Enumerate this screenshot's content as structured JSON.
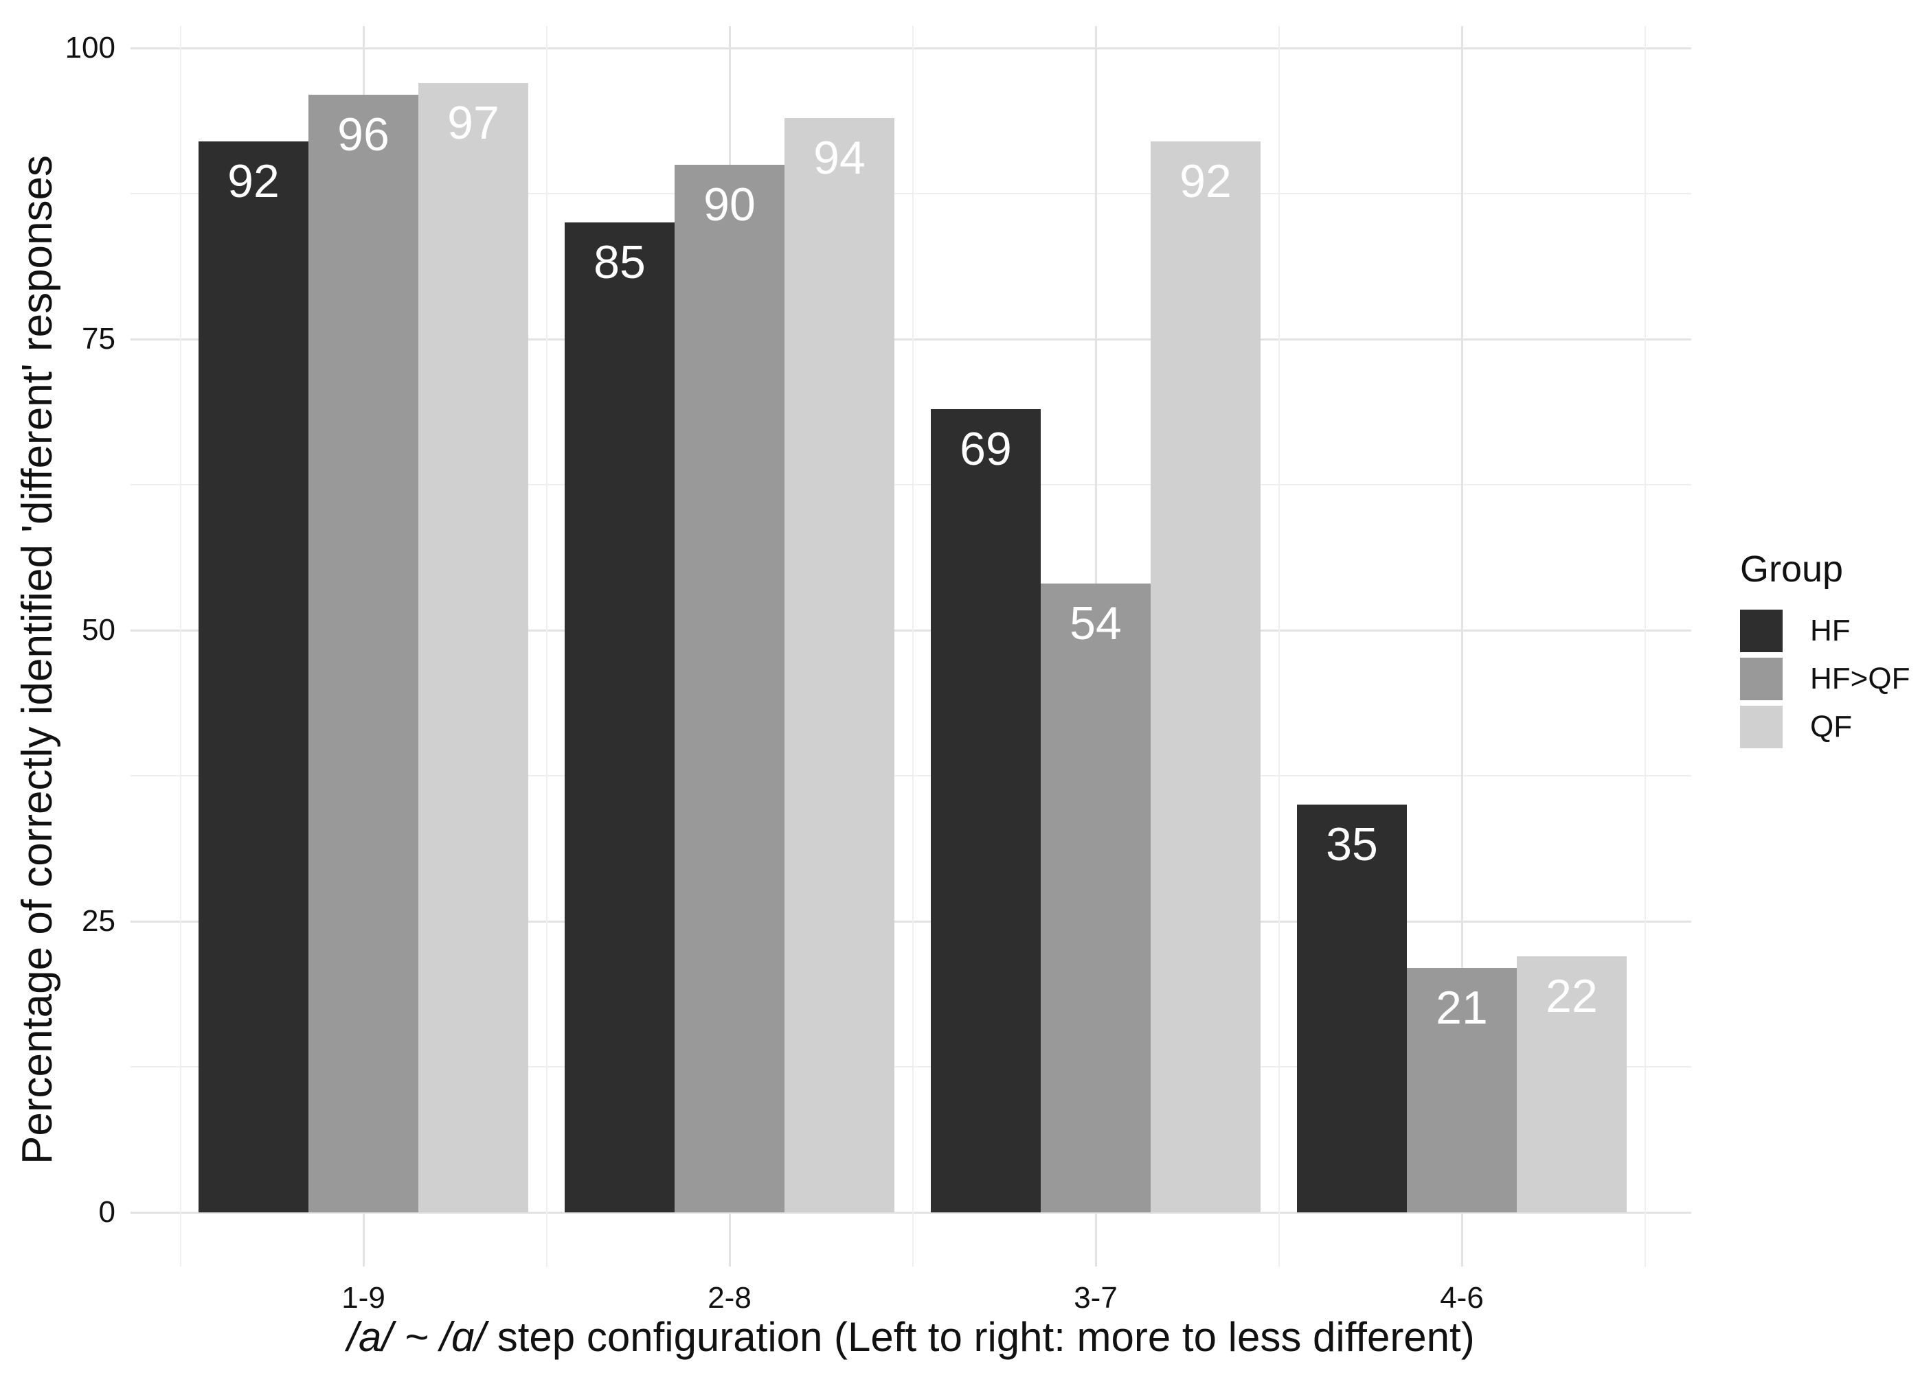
{
  "chart_data": {
    "type": "bar",
    "title": "",
    "categories": [
      "1-9",
      "2-8",
      "3-7",
      "4-6"
    ],
    "series": [
      {
        "name": "HF",
        "color": "#2e2e2e",
        "values": [
          92,
          85,
          69,
          35
        ]
      },
      {
        "name": "HF>QF",
        "color": "#999999",
        "values": [
          96,
          90,
          54,
          21
        ]
      },
      {
        "name": "QF",
        "color": "#d0d0d0",
        "values": [
          97,
          94,
          92,
          22
        ]
      }
    ],
    "bar_value_labels_shown": true,
    "bar_label_color": "#ffffff",
    "xlabel_italic": "/a/ ~ /ɑ/",
    "xlabel_rest": " step configuration (Left to right: more to less different)",
    "ylabel": "Percentage of correctly identified 'different' responses",
    "ylim": [
      0,
      100
    ],
    "y_major_ticks": [
      0,
      25,
      50,
      75,
      100
    ],
    "y_minor_ticks": [
      12.5,
      37.5,
      62.5,
      87.5
    ],
    "grid": "horizontal and vertical, major + minor, light gray on white",
    "legend_title": "Group",
    "legend_position": "right-middle"
  },
  "colors": {
    "background": "#ffffff",
    "grid_major": "#e3e3e3",
    "grid_minor": "#efefef",
    "text": "#111111",
    "bar_label": "#ffffff"
  }
}
